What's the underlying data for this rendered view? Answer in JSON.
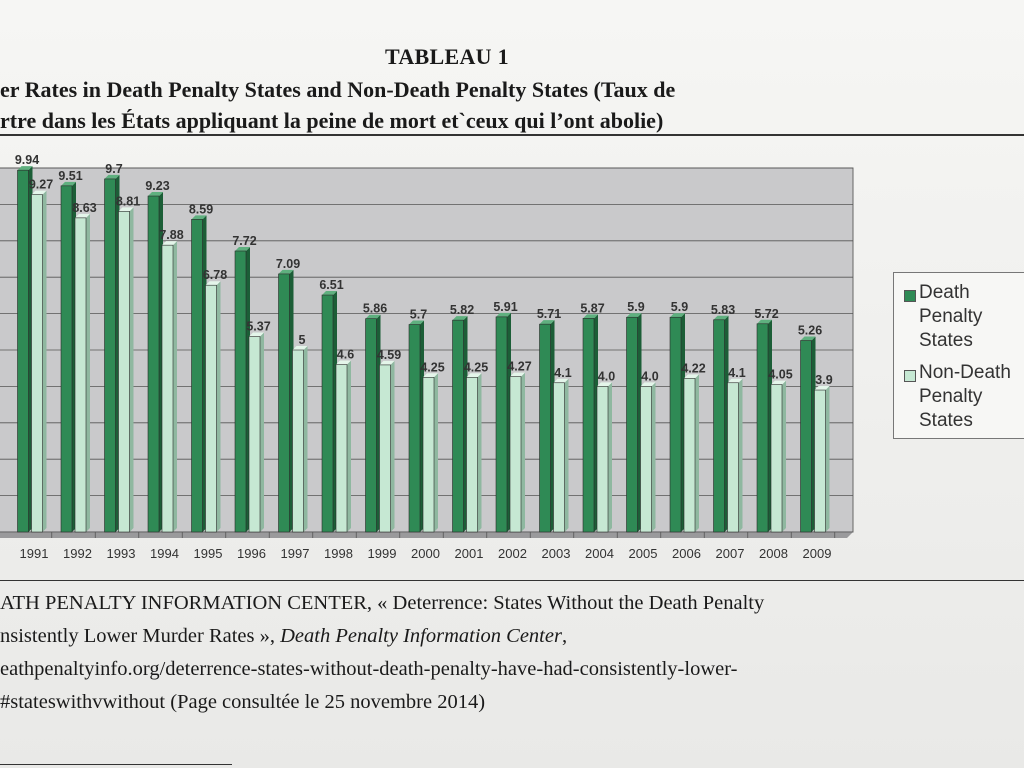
{
  "page": {
    "heading": "TABLEAU 1",
    "title_line1": "er Rates in Death Penalty States and Non-Death Penalty States (Taux de",
    "title_line2": "rtre dans les États appliquant la peine de mort et`ceux qui l’ont abolie)",
    "source_lines": [
      "ATH PENALTY INFORMATION CENTER, « Deterrence: States Without the Death Penalty",
      "nsistently Lower Murder Rates », ",
      "eathpenaltyinfo.org/deterrence-states-without-death-penalty-have-had-consistently-lower-",
      "#stateswithvwithout (Page consultée le 25 novembre 2014)"
    ],
    "source_italic": "Death Penalty Information Center",
    "source_line2_end": ","
  },
  "chart_data": {
    "type": "bar",
    "categories": [
      "1991",
      "1992",
      "1993",
      "1994",
      "1995",
      "1996",
      "1997",
      "1998",
      "1999",
      "2000",
      "2001",
      "2002",
      "2003",
      "2004",
      "2005",
      "2006",
      "2007",
      "2008",
      "2009"
    ],
    "series": [
      {
        "name": "Death Penalty States",
        "color": "#2f8a55",
        "values": [
          9.94,
          9.51,
          9.7,
          9.23,
          8.59,
          7.72,
          7.09,
          6.51,
          5.86,
          5.7,
          5.82,
          5.91,
          5.71,
          5.87,
          5.9,
          5.9,
          5.83,
          5.72,
          5.26
        ],
        "labels": [
          "9.94",
          "9.51",
          "9.7",
          "9.23",
          "8.59",
          "7.72",
          "7.09",
          "6.51",
          "5.86",
          "5.7",
          "5.82",
          "5.91",
          "5.71",
          "5.87",
          "5.9",
          "5.9",
          "5.83",
          "5.72",
          "5.26"
        ]
      },
      {
        "name": "Non-Death Penalty States",
        "color": "#c6e8d3",
        "values": [
          9.27,
          8.63,
          8.81,
          7.88,
          6.78,
          5.37,
          5.0,
          4.6,
          4.59,
          4.25,
          4.25,
          4.27,
          4.1,
          4.0,
          4.0,
          4.22,
          4.1,
          4.05,
          3.9
        ],
        "labels": [
          "9.27",
          "8.63",
          "8.81",
          "7.88",
          "6.78",
          "5.37",
          "5",
          "4.6",
          "4.59",
          "4.25",
          "4.25",
          "4.27",
          "4.1",
          "4.0",
          "4.0",
          "4.22",
          "4.1",
          "4.05",
          "3.9"
        ]
      }
    ],
    "ylim": [
      0,
      10
    ],
    "grid": true,
    "legend_position": "right",
    "legend_labels": [
      "Death\nPenalty\nStates",
      "Non-Death\nPenalty\nStates"
    ]
  }
}
